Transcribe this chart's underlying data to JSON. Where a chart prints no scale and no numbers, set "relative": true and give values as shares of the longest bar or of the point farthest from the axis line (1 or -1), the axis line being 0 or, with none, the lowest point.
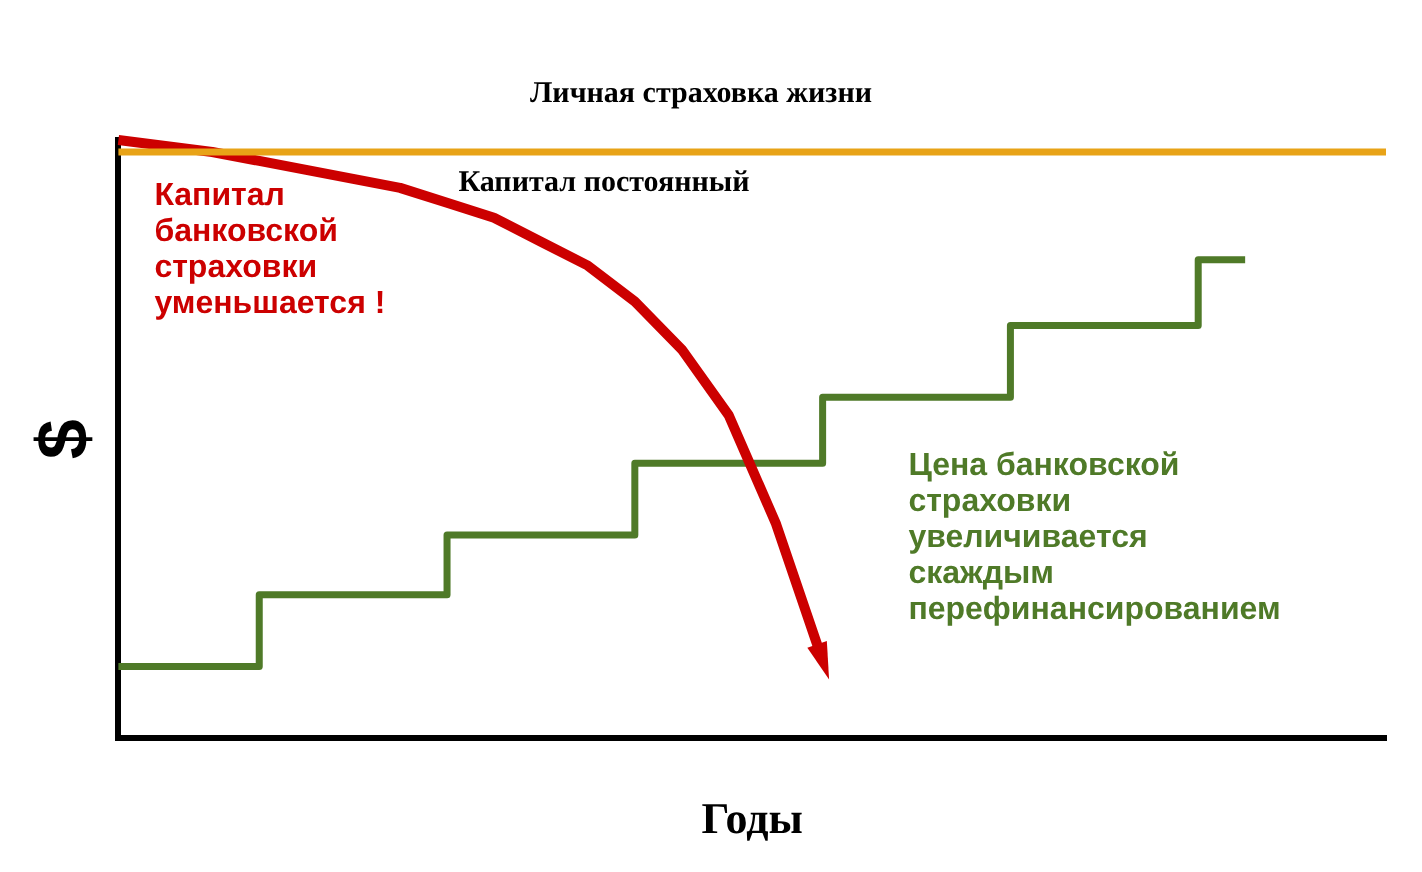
{
  "chart_data": {
    "type": "line",
    "relative": true,
    "title": "Личная страховка жизни",
    "xlabel": "Годы",
    "ylabel": "$",
    "annotations": [
      "Капитал постоянный"
    ],
    "legend": false,
    "marker": "none",
    "categories": [
      null,
      null,
      null,
      null,
      null,
      null,
      null,
      null,
      null,
      null,
      null,
      null,
      null,
      null,
      null,
      null,
      null,
      null,
      null,
      null,
      null,
      null,
      null,
      null,
      null,
      null,
      null,
      null
    ],
    "series": [
      {
        "color": "#e8a317",
        "values": [
          0.98,
          0.98,
          0.98,
          0.98,
          0.98,
          0.98,
          0.98,
          0.98,
          0.98,
          0.98,
          0.98,
          0.98,
          0.98,
          0.98,
          0.98,
          0.98,
          0.98,
          0.98,
          0.98,
          0.98,
          0.98,
          0.98,
          0.98,
          0.98,
          0.98,
          0.98,
          0.98,
          0.98
        ]
      },
      {
        "name": "Капитал банковской страховки уменьшается !",
        "color": "#cc0000",
        "values": [
          1.0,
          0.99,
          0.98,
          0.965,
          0.95,
          0.935,
          0.92,
          0.895,
          0.87,
          0.83,
          0.79,
          0.73,
          0.65,
          0.54,
          0.36,
          0.13,
          null,
          null,
          null,
          null,
          null,
          null,
          null,
          null,
          null,
          null,
          null,
          null
        ]
      },
      {
        "name": "Цена банковской страховки увеличивается скаждым перефинансированием",
        "color": "#4f7a28",
        "type": "step",
        "values": [
          0.12,
          0.12,
          0.12,
          0.12,
          0.24,
          0.24,
          0.24,
          0.24,
          0.34,
          0.34,
          0.34,
          0.34,
          0.46,
          0.46,
          0.46,
          0.46,
          0.57,
          0.57,
          0.57,
          0.57,
          0.69,
          0.69,
          0.69,
          0.69,
          0.8,
          null,
          null,
          null
        ]
      }
    ]
  }
}
